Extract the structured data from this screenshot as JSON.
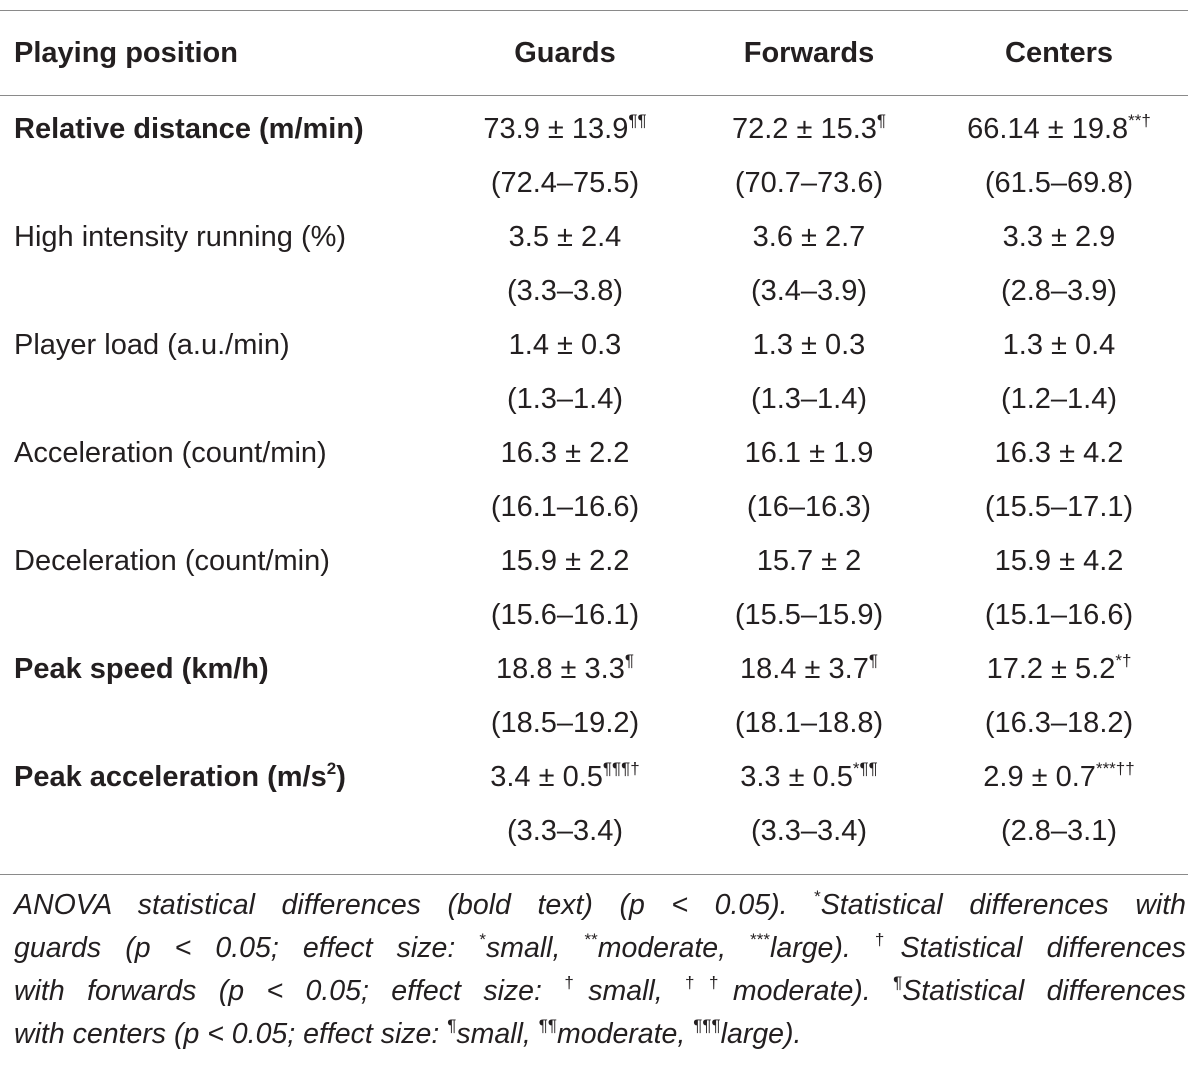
{
  "table": {
    "headers": [
      "Playing position",
      "Guards",
      "Forwards",
      "Centers"
    ],
    "rows": [
      {
        "label": "Relative distance (m/min)",
        "label_sup": "",
        "label_after_sup": "",
        "bold": true,
        "cells": [
          {
            "mean": "73.9 ± 13.9",
            "sup": "¶¶",
            "range": "(72.4–75.5)"
          },
          {
            "mean": "72.2 ± 15.3",
            "sup": "¶",
            "range": "(70.7–73.6)"
          },
          {
            "mean": "66.14 ± 19.8",
            "sup": "**†",
            "range": "(61.5–69.8)"
          }
        ]
      },
      {
        "label": "High intensity running (%)",
        "label_sup": "",
        "label_after_sup": "",
        "bold": false,
        "cells": [
          {
            "mean": "3.5 ± 2.4",
            "sup": "",
            "range": "(3.3–3.8)"
          },
          {
            "mean": "3.6 ± 2.7",
            "sup": "",
            "range": "(3.4–3.9)"
          },
          {
            "mean": "3.3 ± 2.9",
            "sup": "",
            "range": "(2.8–3.9)"
          }
        ]
      },
      {
        "label": "Player load (a.u./min)",
        "label_sup": "",
        "label_after_sup": "",
        "bold": false,
        "cells": [
          {
            "mean": "1.4 ± 0.3",
            "sup": "",
            "range": "(1.3–1.4)"
          },
          {
            "mean": "1.3 ± 0.3",
            "sup": "",
            "range": "(1.3–1.4)"
          },
          {
            "mean": "1.3 ± 0.4",
            "sup": "",
            "range": "(1.2–1.4)"
          }
        ]
      },
      {
        "label": "Acceleration (count/min)",
        "label_sup": "",
        "label_after_sup": "",
        "bold": false,
        "cells": [
          {
            "mean": "16.3 ± 2.2",
            "sup": "",
            "range": "(16.1–16.6)"
          },
          {
            "mean": "16.1 ± 1.9",
            "sup": "",
            "range": "(16–16.3)"
          },
          {
            "mean": "16.3 ± 4.2",
            "sup": "",
            "range": "(15.5–17.1)"
          }
        ]
      },
      {
        "label": "Deceleration (count/min)",
        "label_sup": "",
        "label_after_sup": "",
        "bold": false,
        "cells": [
          {
            "mean": "15.9 ± 2.2",
            "sup": "",
            "range": "(15.6–16.1)"
          },
          {
            "mean": "15.7 ± 2",
            "sup": "",
            "range": "(15.5–15.9)"
          },
          {
            "mean": "15.9 ± 4.2",
            "sup": "",
            "range": "(15.1–16.6)"
          }
        ]
      },
      {
        "label": "Peak speed (km/h)",
        "label_sup": "",
        "label_after_sup": "",
        "bold": true,
        "cells": [
          {
            "mean": "18.8 ± 3.3",
            "sup": "¶",
            "range": "(18.5–19.2)"
          },
          {
            "mean": "18.4 ± 3.7",
            "sup": "¶",
            "range": "(18.1–18.8)"
          },
          {
            "mean": "17.2 ± 5.2",
            "sup": "*†",
            "range": "(16.3–18.2)"
          }
        ]
      },
      {
        "label": "Peak acceleration (m/s",
        "label_sup": "2",
        "label_after_sup": ")",
        "bold": true,
        "cells": [
          {
            "mean": "3.4 ± 0.5",
            "sup": "¶¶¶†",
            "range": "(3.3–3.4)"
          },
          {
            "mean": "3.3 ± 0.5",
            "sup": "*¶¶",
            "range": "(3.3–3.4)"
          },
          {
            "mean": "2.9 ± 0.7",
            "sup": "***††",
            "range": "(2.8–3.1)"
          }
        ]
      }
    ]
  },
  "footnote": {
    "lines": [
      [
        {
          "t": "ANOVA statistical differences (bold text) (p < 0.05). "
        },
        {
          "sup": "*"
        },
        {
          "t": "Statistical differences with"
        }
      ],
      [
        {
          "t": "guards (p < 0.05; effect size: "
        },
        {
          "sup": "*"
        },
        {
          "t": "small, "
        },
        {
          "sup": "**"
        },
        {
          "t": "moderate, "
        },
        {
          "sup": "***"
        },
        {
          "t": "large). "
        },
        {
          "sup": "†"
        },
        {
          "t": "Statistical differences"
        }
      ],
      [
        {
          "t": "with forwards (p < 0.05; effect size: "
        },
        {
          "sup": "†"
        },
        {
          "t": "small, "
        },
        {
          "sup": "††"
        },
        {
          "t": "moderate). "
        },
        {
          "sup": "¶"
        },
        {
          "t": "Statistical differences"
        }
      ],
      [
        {
          "t": "with centers (p < 0.05; effect size: "
        },
        {
          "sup": "¶"
        },
        {
          "t": "small, "
        },
        {
          "sup": "¶¶"
        },
        {
          "t": "moderate, "
        },
        {
          "sup": "¶¶¶"
        },
        {
          "t": "large)."
        }
      ]
    ]
  }
}
